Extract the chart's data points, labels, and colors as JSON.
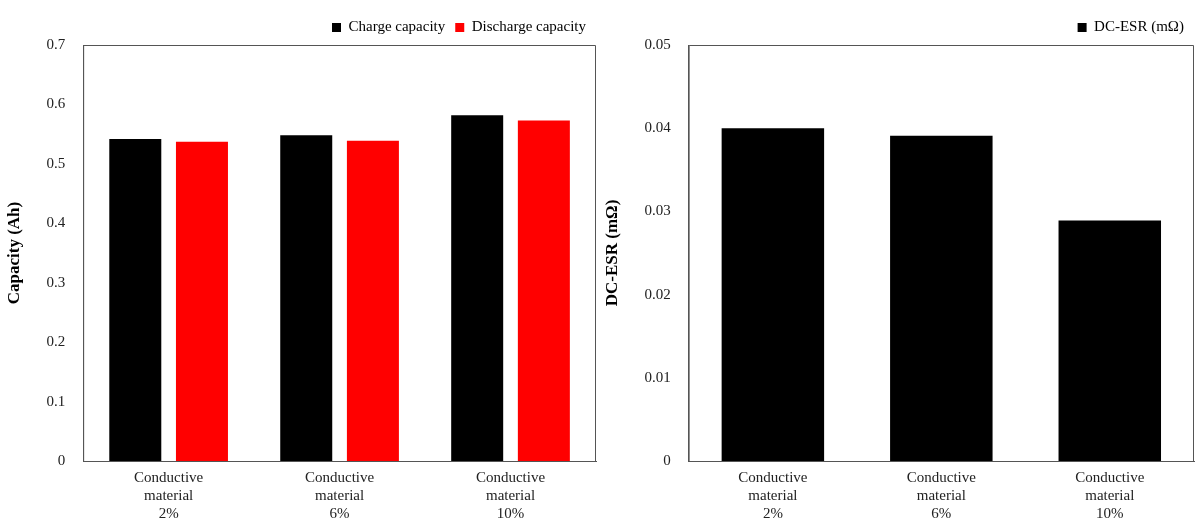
{
  "chart_data": [
    {
      "type": "bar",
      "ylabel": "Capacity (Ah)",
      "categories": [
        "Conductive material 2%",
        "Conductive material 6%",
        "Conductive material 10%"
      ],
      "series": [
        {
          "name": "Charge capacity",
          "color": "#000000",
          "values": [
            0.542,
            0.548,
            0.582
          ]
        },
        {
          "name": "Discharge capacity",
          "color": "#ff0000",
          "values": [
            0.537,
            0.539,
            0.573
          ]
        }
      ],
      "ylim": [
        0,
        0.7
      ],
      "yticks": [
        0,
        0.1,
        0.2,
        0.3,
        0.4,
        0.5,
        0.6,
        0.7
      ],
      "grid": false,
      "legend": "top right"
    },
    {
      "type": "bar",
      "ylabel": "DC-ESR (mΩ)",
      "categories": [
        "Conductive material 2%",
        "Conductive material 6%",
        "Conductive material 10%"
      ],
      "series": [
        {
          "name": "DC-ESR (mΩ)",
          "color": "#000000",
          "values": [
            0.04,
            0.0391,
            0.0289
          ]
        }
      ],
      "ylim": [
        0,
        0.05
      ],
      "yticks": [
        0,
        0.01,
        0.02,
        0.03,
        0.04,
        0.05
      ],
      "grid": false,
      "legend": "top right"
    }
  ]
}
